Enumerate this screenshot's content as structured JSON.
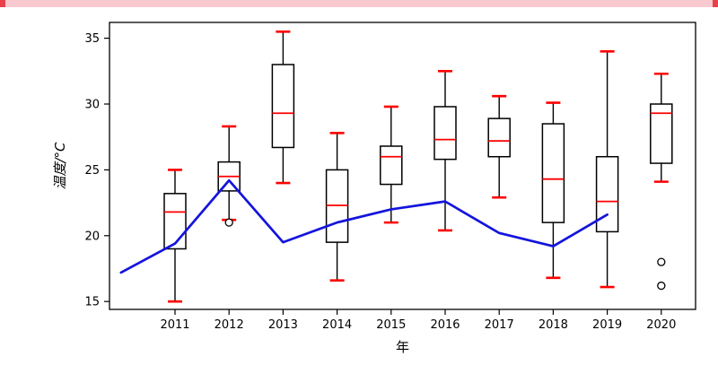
{
  "top_banner": {
    "background_color": "#f8c9cf",
    "edge_color": "#e8414b"
  },
  "chart_data": {
    "type": "boxplot+line",
    "title": "",
    "xlabel": "年",
    "ylabel": "温度/°C",
    "categories": [
      "2011",
      "2012",
      "2013",
      "2014",
      "2015",
      "2016",
      "2017",
      "2018",
      "2019",
      "2020"
    ],
    "ylim": [
      14.4,
      36.2
    ],
    "yticks": [
      15,
      20,
      25,
      30,
      35
    ],
    "grid": false,
    "legend": "none",
    "boxes": [
      {
        "year": "2011",
        "low": 15.0,
        "q1": 19.0,
        "median": 21.8,
        "q3": 23.2,
        "high": 25.0,
        "outliers": []
      },
      {
        "year": "2012",
        "low": 21.2,
        "q1": 23.4,
        "median": 24.5,
        "q3": 25.6,
        "high": 28.3,
        "outliers": [
          21.0
        ]
      },
      {
        "year": "2013",
        "low": 24.0,
        "q1": 26.7,
        "median": 29.3,
        "q3": 33.0,
        "high": 35.5,
        "outliers": []
      },
      {
        "year": "2014",
        "low": 16.6,
        "q1": 19.5,
        "median": 22.3,
        "q3": 25.0,
        "high": 27.8,
        "outliers": []
      },
      {
        "year": "2015",
        "low": 21.0,
        "q1": 23.9,
        "median": 26.0,
        "q3": 26.8,
        "high": 29.8,
        "outliers": []
      },
      {
        "year": "2016",
        "low": 20.4,
        "q1": 25.8,
        "median": 27.3,
        "q3": 29.8,
        "high": 32.5,
        "outliers": []
      },
      {
        "year": "2017",
        "low": 22.9,
        "q1": 26.0,
        "median": 27.2,
        "q3": 28.9,
        "high": 30.6,
        "outliers": []
      },
      {
        "year": "2018",
        "low": 16.8,
        "q1": 21.0,
        "median": 24.3,
        "q3": 28.5,
        "high": 30.1,
        "outliers": []
      },
      {
        "year": "2019",
        "low": 16.1,
        "q1": 20.3,
        "median": 22.6,
        "q3": 26.0,
        "high": 34.0,
        "outliers": []
      },
      {
        "year": "2020",
        "low": 24.1,
        "q1": 25.5,
        "median": 29.3,
        "q3": 30.0,
        "high": 32.3,
        "outliers": [
          18.0,
          16.2
        ]
      }
    ],
    "line_series": {
      "name": "blue-trend-line",
      "color": "#1414dd",
      "x_offsets": [
        -1.0,
        0,
        1,
        2,
        3,
        4,
        5,
        6,
        7,
        8
      ],
      "values": [
        17.2,
        19.4,
        24.2,
        19.5,
        21.0,
        22.0,
        22.6,
        20.2,
        19.2,
        21.6
      ]
    },
    "colors": {
      "box_edge": "#000000",
      "whisker": "#000000",
      "median": "#ff0000",
      "cap": "#ff0000",
      "outlier_edge": "#000000",
      "frame": "#000000"
    }
  }
}
